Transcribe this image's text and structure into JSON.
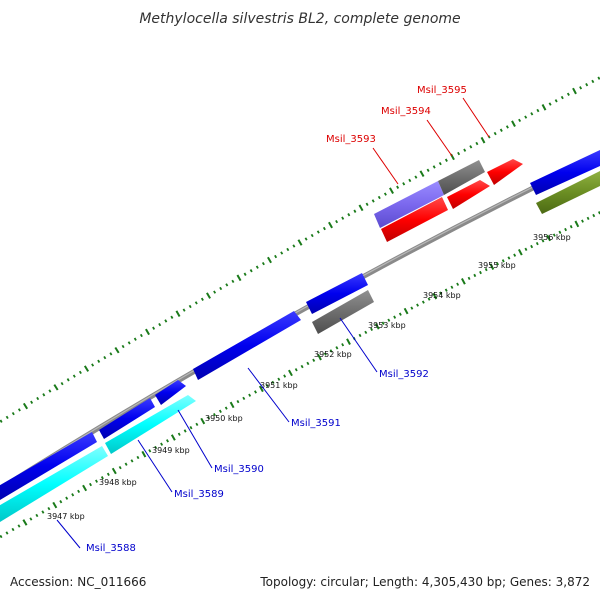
{
  "header": {
    "title": "Methylocella silvestris BL2, complete genome"
  },
  "footer": {
    "accession": "Accession: NC_011666",
    "summary": "Topology: circular; Length: 4,305,430 bp; Genes: 3,872"
  },
  "colors": {
    "backbone": "#8a8a8a",
    "forward_gene": "#0000ee",
    "reverse_gene": "#00ffff",
    "rna_gene": "#ff0000",
    "grey_gene": "#6e6e6e",
    "purple_gene": "#7b68ee",
    "olive_gene": "#6b8e23",
    "tick": "#1a7a1a",
    "label_blue": "#0000cc",
    "label_red": "#dd0000"
  },
  "ruler": {
    "labels": [
      "3947 kbp",
      "3948 kbp",
      "3949 kbp",
      "3950 kbp",
      "3951 kbp",
      "3952 kbp",
      "3953 kbp",
      "3954 kbp",
      "3955 kbp",
      "3956 kbp"
    ]
  },
  "genes": [
    {
      "label": "Msil_3588",
      "color": "blue"
    },
    {
      "label": "Msil_3589",
      "color": "blue"
    },
    {
      "label": "Msil_3590",
      "color": "blue"
    },
    {
      "label": "Msil_3591",
      "color": "blue"
    },
    {
      "label": "Msil_3592",
      "color": "blue"
    },
    {
      "label": "Msil_3593",
      "color": "red"
    },
    {
      "label": "Msil_3594",
      "color": "red"
    },
    {
      "label": "Msil_3595",
      "color": "red"
    }
  ]
}
